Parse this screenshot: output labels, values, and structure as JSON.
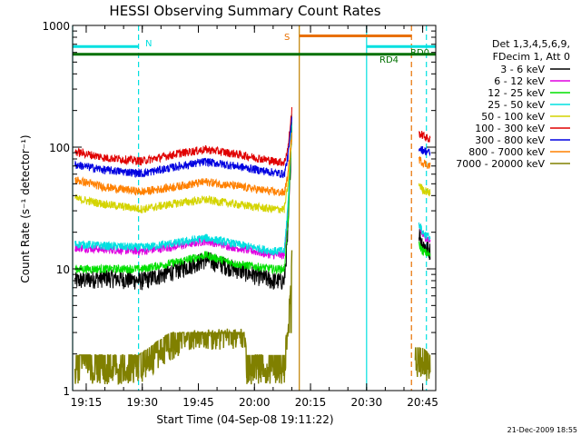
{
  "chart_data": {
    "type": "line",
    "title": "HESSI Observing Summary Count Rates",
    "xlabel": "Start Time (04-Sep-08 19:11:22)",
    "ylabel": "Count Rate (s⁻¹ detector⁻¹)",
    "yscale": "log",
    "ylim": [
      1,
      1000
    ],
    "xlim": [
      "19:11:22",
      "20:48:30"
    ],
    "x_ticks": [
      "19:15",
      "19:30",
      "19:45",
      "20:00",
      "20:15",
      "20:30",
      "20:45"
    ],
    "y_ticks": [
      "1",
      "10",
      "100",
      "1000"
    ],
    "grid": false,
    "legend_position": "right",
    "legend_header": [
      "Det 1,3,4,5,6,9,",
      "FDecim 1, Att 0"
    ],
    "series": [
      {
        "name": "3 - 6 keV",
        "color": "#000000",
        "x": [
          "19:12",
          "19:20",
          "19:30",
          "19:40",
          "19:47",
          "19:55",
          "20:05",
          "20:08",
          "20:09",
          "20:10",
          "20:12",
          "20:43",
          "20:44",
          "20:45",
          "20:47"
        ],
        "y": [
          8,
          8.5,
          8,
          10,
          12,
          10,
          8,
          8,
          20,
          150,
          null,
          null,
          20,
          16,
          14
        ]
      },
      {
        "name": "6 - 12 keV",
        "color": "#e000e0",
        "x": [
          "19:12",
          "19:20",
          "19:30",
          "19:40",
          "19:47",
          "19:55",
          "20:05",
          "20:08",
          "20:09",
          "20:10",
          "20:12",
          "20:43",
          "20:44",
          "20:45",
          "20:47"
        ],
        "y": [
          15,
          14.5,
          14,
          15.5,
          17,
          15,
          13,
          13,
          30,
          170,
          null,
          null,
          22,
          19,
          17
        ]
      },
      {
        "name": "12 - 25 keV",
        "color": "#00e000",
        "x": [
          "19:12",
          "19:20",
          "19:30",
          "19:40",
          "19:47",
          "19:55",
          "20:05",
          "20:08",
          "20:09",
          "20:10",
          "20:12",
          "20:43",
          "20:44",
          "20:45",
          "20:47"
        ],
        "y": [
          10,
          10,
          10,
          11.5,
          13,
          11,
          10,
          10,
          25,
          150,
          null,
          null,
          16,
          14,
          13
        ]
      },
      {
        "name": "25 - 50 keV",
        "color": "#00e0e0",
        "x": [
          "19:12",
          "19:20",
          "19:30",
          "19:40",
          "19:47",
          "19:55",
          "20:05",
          "20:08",
          "20:09",
          "20:10",
          "20:12",
          "20:43",
          "20:44",
          "20:45",
          "20:47"
        ],
        "y": [
          16,
          15.5,
          15,
          16.5,
          18,
          16,
          14,
          14,
          35,
          180,
          null,
          null,
          24,
          20,
          18
        ]
      },
      {
        "name": "50 - 100 keV",
        "color": "#d4d400",
        "x": [
          "19:12",
          "19:20",
          "19:30",
          "19:40",
          "19:47",
          "19:55",
          "20:05",
          "20:08",
          "20:09",
          "20:10",
          "20:12",
          "20:43",
          "20:44",
          "20:45",
          "20:47"
        ],
        "y": [
          38,
          34,
          31,
          35,
          37,
          34,
          31,
          31,
          50,
          120,
          null,
          null,
          50,
          45,
          42
        ]
      },
      {
        "name": "100 - 300 keV",
        "color": "#e00000",
        "x": [
          "19:12",
          "19:20",
          "19:30",
          "19:40",
          "19:47",
          "19:55",
          "20:05",
          "20:08",
          "20:09",
          "20:10",
          "20:12",
          "20:43",
          "20:44",
          "20:45",
          "20:47"
        ],
        "y": [
          92,
          82,
          77,
          89,
          96,
          88,
          77,
          75,
          100,
          200,
          null,
          null,
          130,
          125,
          115
        ]
      },
      {
        "name": "300 - 800 keV",
        "color": "#0000e0",
        "x": [
          "19:12",
          "19:20",
          "19:30",
          "19:40",
          "19:47",
          "19:55",
          "20:05",
          "20:08",
          "20:09",
          "20:10",
          "20:12",
          "20:43",
          "20:44",
          "20:45",
          "20:47"
        ],
        "y": [
          72,
          65,
          61,
          70,
          76,
          70,
          62,
          60,
          85,
          170,
          null,
          null,
          100,
          95,
          90
        ]
      },
      {
        "name": "800 - 7000 keV",
        "color": "#ff8000",
        "x": [
          "19:12",
          "19:20",
          "19:30",
          "19:40",
          "19:47",
          "19:55",
          "20:05",
          "20:08",
          "20:09",
          "20:10",
          "20:12",
          "20:43",
          "20:44",
          "20:45",
          "20:47"
        ],
        "y": [
          54,
          47,
          43,
          48,
          52,
          48,
          43,
          42,
          60,
          130,
          null,
          null,
          80,
          75,
          70
        ]
      },
      {
        "name": "7000 - 20000 keV",
        "color": "#808000",
        "x": [
          "19:12",
          "19:28",
          "19:29",
          "19:42",
          "19:43",
          "19:57",
          "19:58",
          "20:08",
          "20:09",
          "20:10",
          "20:12",
          "20:42",
          "20:43",
          "20:45",
          "20:47"
        ],
        "y": [
          1.4,
          1.4,
          1.4,
          2.7,
          2.7,
          2.7,
          1.4,
          1.4,
          3,
          12,
          null,
          null,
          1.6,
          1.6,
          1.4
        ]
      }
    ],
    "flag_bars": [
      {
        "label": "",
        "color": "#007000",
        "level": 580,
        "start": "19:11:22",
        "end": "20:48:30",
        "markers": [
          "RD4",
          "RD0"
        ]
      },
      {
        "label": "N",
        "color": "#00e0e0",
        "level": 670,
        "segments": [
          [
            "19:11:22",
            "19:29"
          ],
          [
            "20:30",
            "20:48:30"
          ]
        ]
      },
      {
        "label": "S",
        "color": "#e87000",
        "level": 820,
        "segments": [
          [
            "20:12",
            "20:42"
          ]
        ]
      }
    ],
    "vertical_markers": [
      {
        "type": "solid",
        "color": "#00e0e0",
        "x": "19:11:22"
      },
      {
        "type": "dashed",
        "color": "#00e0e0",
        "x": "19:29"
      },
      {
        "type": "solid",
        "color": "#c08000",
        "x": "20:12"
      },
      {
        "type": "solid",
        "color": "#00e0e0",
        "x": "20:30"
      },
      {
        "type": "dashed",
        "color": "#e87000",
        "x": "20:42"
      },
      {
        "type": "dashed",
        "color": "#00e0e0",
        "x": "20:46"
      }
    ]
  },
  "labels": {
    "footer_date": "21-Dec-2009 18:55",
    "marker_N": "N",
    "marker_S": "S",
    "marker_RD4": "RD4",
    "marker_RD0": "RD0"
  }
}
